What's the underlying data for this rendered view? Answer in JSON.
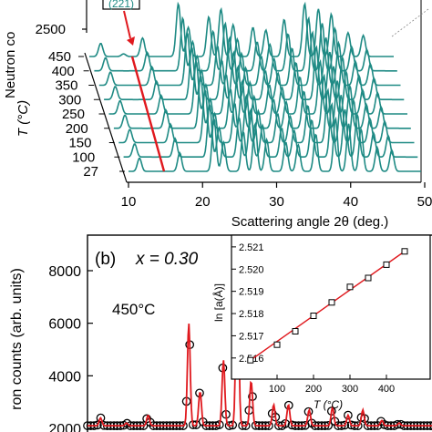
{
  "colors": {
    "teal": "#1e8a84",
    "red": "#e0191e",
    "black": "#000000"
  },
  "chart_data": [
    {
      "type": "line",
      "panel": "a",
      "xlabel": "Scattering angle 2θ (deg.)",
      "ylabel_axis": "Neutron co",
      "zlabel": "T (°C)",
      "xlim": [
        10,
        50
      ],
      "x_ticks": [
        "10",
        "20",
        "30",
        "40",
        "50"
      ],
      "intensity_tick": "2500",
      "temperatures": [
        "450",
        "400",
        "350",
        "300",
        "250",
        "200",
        "150",
        "100",
        "27"
      ],
      "annotation_legend_text": "(221)",
      "series": [
        {
          "values": [
            {
              "x": 11.5,
              "y": 0.25
            },
            {
              "x": 14.5,
              "y": 0.05
            },
            {
              "x": 17.0,
              "y": 0.35
            },
            {
              "x": 21.7,
              "y": 1.0
            },
            {
              "x": 23.0,
              "y": 0.55
            },
            {
              "x": 25.7,
              "y": 0.75
            },
            {
              "x": 27.3,
              "y": 0.9
            },
            {
              "x": 28.9,
              "y": 0.6
            },
            {
              "x": 31.5,
              "y": 0.55
            },
            {
              "x": 33.2,
              "y": 0.5
            },
            {
              "x": 35.6,
              "y": 0.7
            },
            {
              "x": 38.3,
              "y": 1.0
            },
            {
              "x": 40.1,
              "y": 0.9
            },
            {
              "x": 41.8,
              "y": 0.8
            },
            {
              "x": 44.0,
              "y": 0.45
            },
            {
              "x": 46.0,
              "y": 0.4
            }
          ]
        },
        {
          "values": [
            {
              "x": 11.5,
              "y": 0.25
            },
            {
              "x": 17.0,
              "y": 0.35
            },
            {
              "x": 21.7,
              "y": 1.0
            },
            {
              "x": 23.0,
              "y": 0.55
            },
            {
              "x": 25.7,
              "y": 0.75
            },
            {
              "x": 27.3,
              "y": 0.9
            },
            {
              "x": 28.9,
              "y": 0.6
            },
            {
              "x": 31.5,
              "y": 0.55
            },
            {
              "x": 33.2,
              "y": 0.5
            },
            {
              "x": 35.6,
              "y": 0.7
            },
            {
              "x": 38.3,
              "y": 1.0
            },
            {
              "x": 40.1,
              "y": 0.9
            },
            {
              "x": 41.8,
              "y": 0.8
            },
            {
              "x": 44.0,
              "y": 0.45
            },
            {
              "x": 46.0,
              "y": 0.4
            }
          ]
        },
        {
          "values": [
            {
              "x": 11.5,
              "y": 0.25
            },
            {
              "x": 17.0,
              "y": 0.35
            },
            {
              "x": 21.7,
              "y": 1.0
            },
            {
              "x": 23.0,
              "y": 0.55
            },
            {
              "x": 25.7,
              "y": 0.75
            },
            {
              "x": 27.3,
              "y": 0.9
            },
            {
              "x": 28.9,
              "y": 0.6
            },
            {
              "x": 31.5,
              "y": 0.55
            },
            {
              "x": 33.2,
              "y": 0.5
            },
            {
              "x": 35.6,
              "y": 0.7
            },
            {
              "x": 38.3,
              "y": 1.0
            },
            {
              "x": 40.1,
              "y": 0.9
            },
            {
              "x": 41.8,
              "y": 0.8
            },
            {
              "x": 44.0,
              "y": 0.45
            },
            {
              "x": 46.0,
              "y": 0.4
            }
          ]
        },
        {
          "values": [
            {
              "x": 11.5,
              "y": 0.25
            },
            {
              "x": 17.0,
              "y": 0.35
            },
            {
              "x": 21.7,
              "y": 1.0
            },
            {
              "x": 23.0,
              "y": 0.55
            },
            {
              "x": 25.7,
              "y": 0.75
            },
            {
              "x": 27.3,
              "y": 0.9
            },
            {
              "x": 28.9,
              "y": 0.6
            },
            {
              "x": 31.5,
              "y": 0.55
            },
            {
              "x": 33.2,
              "y": 0.5
            },
            {
              "x": 35.6,
              "y": 0.7
            },
            {
              "x": 38.3,
              "y": 1.0
            },
            {
              "x": 40.1,
              "y": 0.9
            },
            {
              "x": 41.8,
              "y": 0.8
            },
            {
              "x": 44.0,
              "y": 0.45
            },
            {
              "x": 46.0,
              "y": 0.4
            }
          ]
        },
        {
          "values": [
            {
              "x": 11.5,
              "y": 0.25
            },
            {
              "x": 17.0,
              "y": 0.35
            },
            {
              "x": 21.7,
              "y": 1.0
            },
            {
              "x": 23.0,
              "y": 0.55
            },
            {
              "x": 25.7,
              "y": 0.75
            },
            {
              "x": 27.3,
              "y": 0.9
            },
            {
              "x": 28.9,
              "y": 0.6
            },
            {
              "x": 31.5,
              "y": 0.55
            },
            {
              "x": 33.2,
              "y": 0.5
            },
            {
              "x": 35.6,
              "y": 0.7
            },
            {
              "x": 38.3,
              "y": 1.0
            },
            {
              "x": 40.1,
              "y": 0.9
            },
            {
              "x": 41.8,
              "y": 0.8
            },
            {
              "x": 44.0,
              "y": 0.45
            },
            {
              "x": 46.0,
              "y": 0.4
            }
          ]
        },
        {
          "values": [
            {
              "x": 11.5,
              "y": 0.25
            },
            {
              "x": 17.0,
              "y": 0.35
            },
            {
              "x": 21.7,
              "y": 1.0
            },
            {
              "x": 23.0,
              "y": 0.55
            },
            {
              "x": 25.7,
              "y": 0.75
            },
            {
              "x": 27.3,
              "y": 0.9
            },
            {
              "x": 28.9,
              "y": 0.6
            },
            {
              "x": 31.5,
              "y": 0.55
            },
            {
              "x": 33.2,
              "y": 0.5
            },
            {
              "x": 35.6,
              "y": 0.7
            },
            {
              "x": 38.3,
              "y": 1.0
            },
            {
              "x": 40.1,
              "y": 0.9
            },
            {
              "x": 41.8,
              "y": 0.8
            },
            {
              "x": 44.0,
              "y": 0.45
            },
            {
              "x": 46.0,
              "y": 0.4
            }
          ]
        },
        {
          "values": [
            {
              "x": 11.5,
              "y": 0.25
            },
            {
              "x": 17.0,
              "y": 0.35
            },
            {
              "x": 21.7,
              "y": 1.0
            },
            {
              "x": 23.0,
              "y": 0.55
            },
            {
              "x": 25.7,
              "y": 0.75
            },
            {
              "x": 27.3,
              "y": 0.9
            },
            {
              "x": 28.9,
              "y": 0.6
            },
            {
              "x": 31.5,
              "y": 0.55
            },
            {
              "x": 33.2,
              "y": 0.5
            },
            {
              "x": 35.6,
              "y": 0.7
            },
            {
              "x": 38.3,
              "y": 1.0
            },
            {
              "x": 40.1,
              "y": 0.9
            },
            {
              "x": 41.8,
              "y": 0.8
            },
            {
              "x": 44.0,
              "y": 0.45
            },
            {
              "x": 46.0,
              "y": 0.4
            }
          ]
        },
        {
          "values": [
            {
              "x": 11.5,
              "y": 0.25
            },
            {
              "x": 17.0,
              "y": 0.35
            },
            {
              "x": 21.7,
              "y": 1.0
            },
            {
              "x": 23.0,
              "y": 0.55
            },
            {
              "x": 25.7,
              "y": 0.75
            },
            {
              "x": 27.3,
              "y": 0.9
            },
            {
              "x": 28.9,
              "y": 0.6
            },
            {
              "x": 31.5,
              "y": 0.55
            },
            {
              "x": 33.2,
              "y": 0.5
            },
            {
              "x": 35.6,
              "y": 0.7
            },
            {
              "x": 38.3,
              "y": 1.0
            },
            {
              "x": 40.1,
              "y": 0.9
            },
            {
              "x": 41.8,
              "y": 0.8
            },
            {
              "x": 44.0,
              "y": 0.45
            },
            {
              "x": 46.0,
              "y": 0.4
            }
          ]
        },
        {
          "values": [
            {
              "x": 11.5,
              "y": 0.25
            },
            {
              "x": 17.0,
              "y": 0.35
            },
            {
              "x": 21.7,
              "y": 1.0
            },
            {
              "x": 23.0,
              "y": 0.55
            },
            {
              "x": 25.7,
              "y": 0.75
            },
            {
              "x": 27.3,
              "y": 0.9
            },
            {
              "x": 28.9,
              "y": 0.6
            },
            {
              "x": 31.5,
              "y": 0.55
            },
            {
              "x": 33.2,
              "y": 0.5
            },
            {
              "x": 35.6,
              "y": 0.7
            },
            {
              "x": 38.3,
              "y": 1.0
            },
            {
              "x": 40.1,
              "y": 0.9
            },
            {
              "x": 41.8,
              "y": 0.8
            },
            {
              "x": 44.0,
              "y": 0.45
            },
            {
              "x": 46.0,
              "y": 0.4
            }
          ]
        }
      ]
    },
    {
      "type": "line",
      "panel": "b",
      "panel_label": "(b)",
      "composition": "x = 0.30",
      "condition_label": "450°C",
      "ylabel": "ron counts (arb. units)",
      "ylim": [
        1500,
        9500
      ],
      "y_ticks": [
        "8000",
        "6000",
        "4000",
        "2000"
      ],
      "xlim": [
        10,
        50
      ],
      "series": [
        {
          "values": [
            {
              "x": 11.5,
              "y": 2400
            },
            {
              "x": 14.5,
              "y": 2200
            },
            {
              "x": 17.0,
              "y": 2500
            },
            {
              "x": 21.7,
              "y": 6000
            },
            {
              "x": 23.0,
              "y": 3400
            },
            {
              "x": 25.7,
              "y": 4600
            },
            {
              "x": 27.3,
              "y": 9000
            },
            {
              "x": 28.9,
              "y": 3800
            },
            {
              "x": 31.5,
              "y": 2900
            },
            {
              "x": 33.2,
              "y": 2900
            },
            {
              "x": 35.6,
              "y": 2700
            },
            {
              "x": 38.3,
              "y": 2800
            },
            {
              "x": 40.1,
              "y": 2500
            },
            {
              "x": 41.8,
              "y": 2700
            },
            {
              "x": 44.0,
              "y": 2300
            },
            {
              "x": 46.0,
              "y": 2200
            }
          ]
        }
      ]
    },
    {
      "type": "line",
      "panel": "b-inset",
      "xlabel": "T (°C)",
      "ylabel": "ln [a(Å)]",
      "xlim": [
        0,
        500
      ],
      "ylim": [
        2.5155,
        2.5212
      ],
      "x_ticks": [
        "100",
        "200",
        "300",
        "400"
      ],
      "y_ticks": [
        "2.521",
        "2.520",
        "2.519",
        "2.518",
        "2.517",
        "2.516"
      ],
      "series": [
        {
          "values": [
            {
              "x": 27,
              "y": 2.5159
            },
            {
              "x": 100,
              "y": 2.5166
            },
            {
              "x": 150,
              "y": 2.5172
            },
            {
              "x": 200,
              "y": 2.5179
            },
            {
              "x": 250,
              "y": 2.5185
            },
            {
              "x": 300,
              "y": 2.5192
            },
            {
              "x": 350,
              "y": 2.5196
            },
            {
              "x": 400,
              "y": 2.5202
            },
            {
              "x": 450,
              "y": 2.5208
            }
          ]
        }
      ]
    }
  ]
}
